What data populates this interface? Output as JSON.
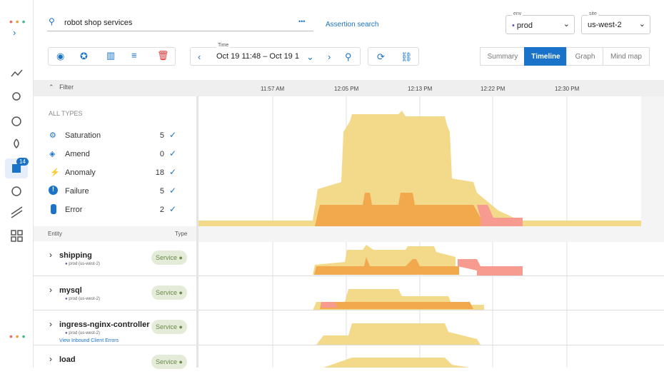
{
  "sidebar": {
    "badge": "14"
  },
  "search": {
    "query": "robot shop services",
    "more": "•••",
    "assertion_search": "Assertion search"
  },
  "env": {
    "label": "env",
    "value": "prod"
  },
  "site": {
    "label": "site",
    "value": "us-west-2"
  },
  "time": {
    "label": "Time",
    "range": "Oct 19 11:48 – Oct 19 1"
  },
  "views": [
    "Summary",
    "Timeline",
    "Graph",
    "Mind map"
  ],
  "timeline": {
    "filter": "Filter",
    "ticks": [
      "11:57 AM",
      "12:05 PM",
      "12:13 PM",
      "12:22 PM",
      "12:30 PM"
    ]
  },
  "types": {
    "all": "ALL TYPES",
    "items": [
      {
        "name": "Saturation",
        "count": 5
      },
      {
        "name": "Amend",
        "count": 0
      },
      {
        "name": "Anomaly",
        "count": 18
      },
      {
        "name": "Failure",
        "count": 5
      },
      {
        "name": "Error",
        "count": 2
      }
    ]
  },
  "entity_header": {
    "entity": "Entity",
    "type": "Type"
  },
  "entities": [
    {
      "name": "shipping",
      "scope": "prod (us-west-2)",
      "type": "Service"
    },
    {
      "name": "mysql",
      "scope": "prod (us-west-2)",
      "type": "Service"
    },
    {
      "name": "ingress-nginx-controller",
      "scope": "prod (us-west-2)",
      "type": "Service",
      "link": "View Inbound Client Errors"
    },
    {
      "name": "load",
      "type": "Service"
    }
  ]
}
